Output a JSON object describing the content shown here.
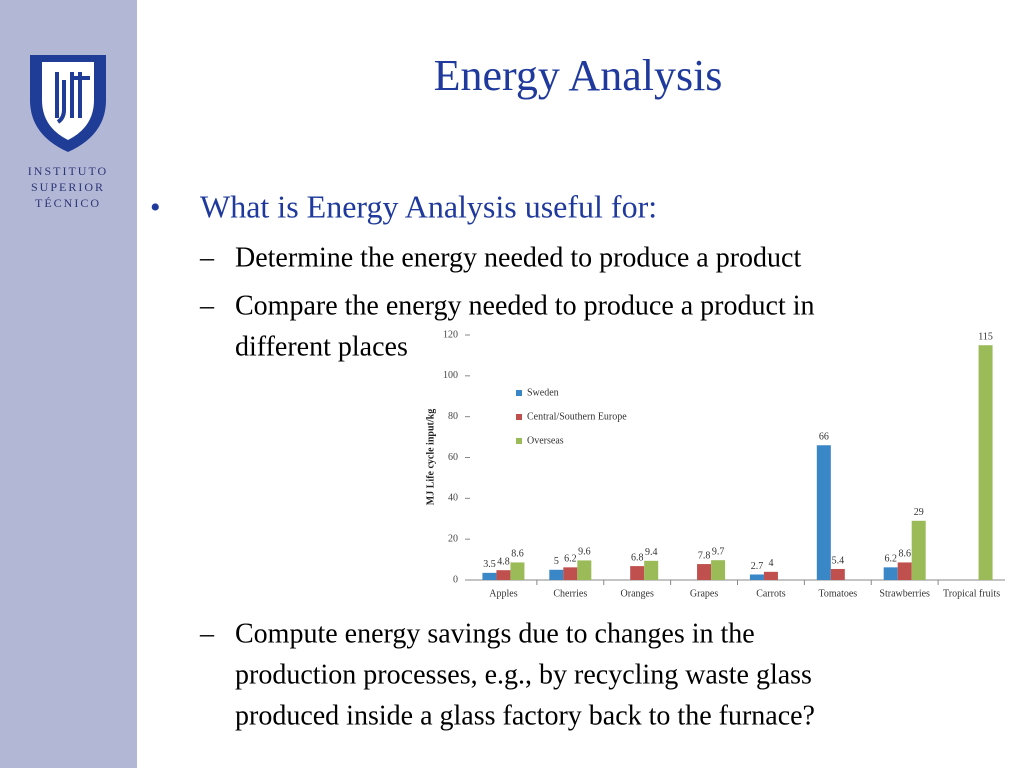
{
  "logo": {
    "lines": [
      "INSTITUTO",
      "SUPERIOR",
      "TÉCNICO"
    ]
  },
  "title": "Energy Analysis",
  "bullet": "What is Energy Analysis useful for:",
  "items": [
    [
      "Determine the energy needed to produce a product"
    ],
    [
      "Compare the energy needed to produce a product in",
      "different places"
    ],
    [
      "Compute energy savings due to changes in the",
      "production processes, e.g., by recycling waste glass",
      "produced inside a glass factory back to the furnace?"
    ]
  ],
  "chart_data": {
    "type": "bar",
    "y_label": "MJ Life cycle input/kg",
    "categories": [
      "Apples",
      "Cherries",
      "Oranges",
      "Grapes",
      "Carrots",
      "Tomatoes",
      "Strawberries",
      "Tropical fruits"
    ],
    "series": [
      {
        "name": "Sweden",
        "color": "#3a87c8",
        "values": [
          3.5,
          5,
          null,
          null,
          2.7,
          66,
          6.2,
          null
        ]
      },
      {
        "name": "Central/Southern Europe",
        "color": "#c0504d",
        "values": [
          4.8,
          6.2,
          6.8,
          7.8,
          4,
          5.4,
          8.6,
          null
        ]
      },
      {
        "name": "Overseas",
        "color": "#9bbb59",
        "values": [
          8.6,
          9.6,
          9.4,
          9.7,
          null,
          null,
          29,
          115
        ]
      }
    ],
    "ylim": [
      0,
      120
    ],
    "yticks": [
      0,
      20,
      40,
      60,
      80,
      100,
      120
    ],
    "grid": false,
    "legend": "upper-left"
  }
}
